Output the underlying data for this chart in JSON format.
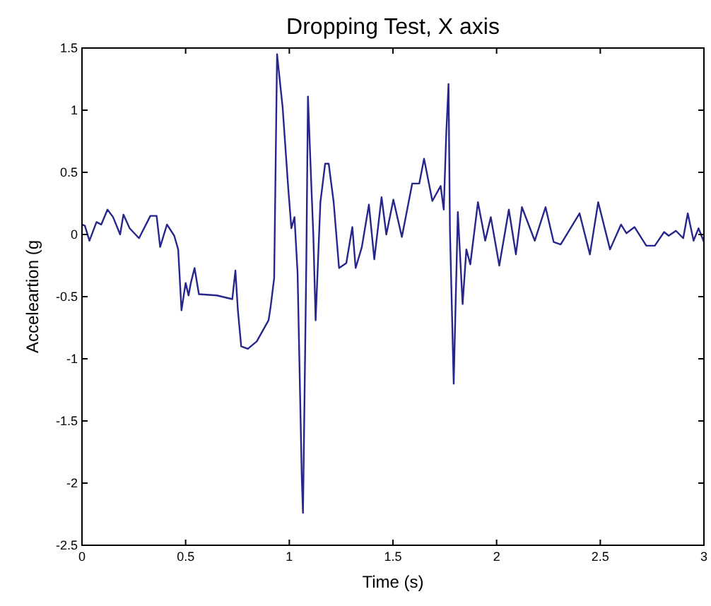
{
  "chart_data": {
    "type": "line",
    "title": "Dropping Test, X axis",
    "xlabel": "Time (s)",
    "ylabel": "Acceleartion (g",
    "x": [
      0,
      0.014,
      0.036,
      0.07,
      0.093,
      0.123,
      0.15,
      0.184,
      0.2,
      0.23,
      0.275,
      0.33,
      0.36,
      0.377,
      0.41,
      0.445,
      0.464,
      0.48,
      0.5,
      0.514,
      0.525,
      0.543,
      0.564,
      0.65,
      0.725,
      0.74,
      0.752,
      0.768,
      0.8,
      0.843,
      0.9,
      0.91,
      0.927,
      0.941,
      0.968,
      0.995,
      1.01,
      1.025,
      1.04,
      1.06,
      1.066,
      1.073,
      1.082,
      1.09,
      1.105,
      1.116,
      1.127,
      1.15,
      1.173,
      1.19,
      1.214,
      1.24,
      1.275,
      1.304,
      1.32,
      1.35,
      1.384,
      1.41,
      1.445,
      1.468,
      1.502,
      1.543,
      1.593,
      1.627,
      1.65,
      1.69,
      1.73,
      1.745,
      1.757,
      1.768,
      1.775,
      1.793,
      1.813,
      1.836,
      1.854,
      1.873,
      1.91,
      1.945,
      1.972,
      2.013,
      2.059,
      2.093,
      2.122,
      2.184,
      2.236,
      2.275,
      2.309,
      2.4,
      2.45,
      2.49,
      2.547,
      2.6,
      2.626,
      2.665,
      2.722,
      2.763,
      2.808,
      2.83,
      2.865,
      2.9,
      2.922,
      2.95,
      2.974,
      3
    ],
    "series": [
      {
        "color": "#26268c",
        "values": [
          0.08,
          0.07,
          -0.05,
          0.1,
          0.08,
          0.2,
          0.14,
          0,
          0.16,
          0.05,
          -0.03,
          0.15,
          0.15,
          -0.1,
          0.08,
          -0.01,
          -0.12,
          -0.61,
          -0.39,
          -0.49,
          -0.39,
          -0.27,
          -0.48,
          -0.49,
          -0.52,
          -0.29,
          -0.61,
          -0.9,
          -0.92,
          -0.86,
          -0.69,
          -0.58,
          -0.35,
          1.45,
          1.02,
          0.37,
          0.05,
          0.14,
          -0.31,
          -1.94,
          -2.24,
          -1.37,
          -0.23,
          1.11,
          0.45,
          -0.01,
          -0.69,
          0.26,
          0.57,
          0.57,
          0.26,
          -0.27,
          -0.23,
          0.06,
          -0.27,
          -0.1,
          0.24,
          -0.2,
          0.3,
          0,
          0.28,
          -0.02,
          0.41,
          0.41,
          0.61,
          0.27,
          0.39,
          0.2,
          0.81,
          1.21,
          0.03,
          -1.2,
          0.18,
          -0.56,
          -0.12,
          -0.24,
          0.26,
          -0.05,
          0.14,
          -0.25,
          0.2,
          -0.16,
          0.22,
          -0.05,
          0.22,
          -0.06,
          -0.08,
          0.17,
          -0.16,
          0.26,
          -0.12,
          0.08,
          0.01,
          0.06,
          -0.09,
          -0.09,
          0.02,
          -0.01,
          0.03,
          -0.03,
          0.17,
          -0.05,
          0.05,
          -0.06
        ]
      }
    ],
    "xlim": [
      0,
      3
    ],
    "xticks": [
      0,
      0.5,
      1,
      1.5,
      2,
      2.5,
      3
    ],
    "ylim": [
      -2.5,
      1.5
    ],
    "yticks": [
      -2.5,
      -2,
      -1.5,
      -1,
      -0.5,
      0,
      0.5,
      1,
      1.5
    ],
    "marker": "none",
    "line_style": "solid"
  }
}
